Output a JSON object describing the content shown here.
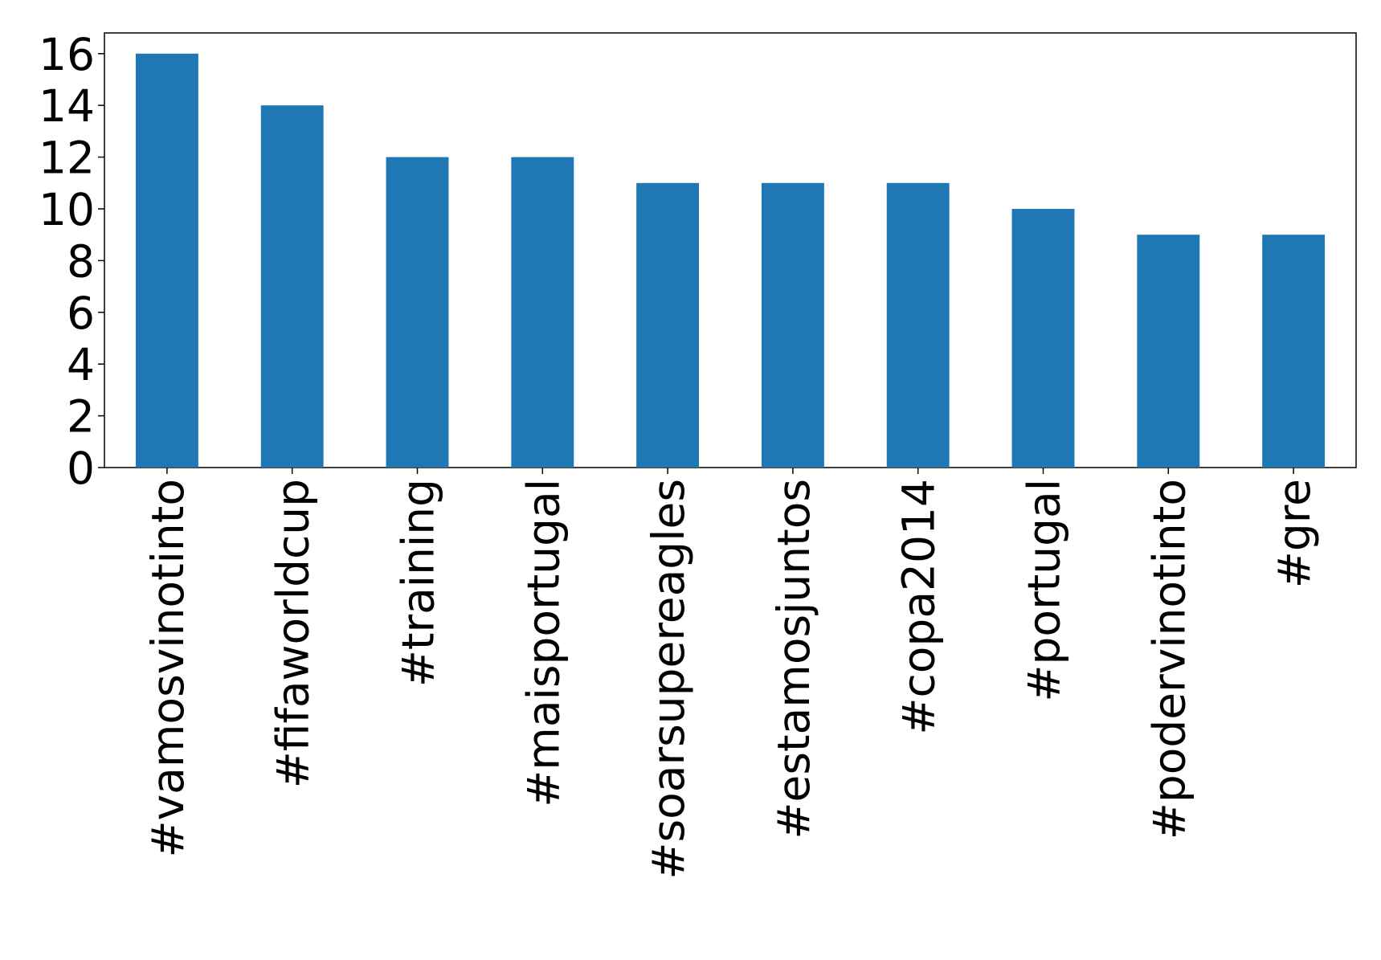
{
  "chart_data": {
    "type": "bar",
    "categories": [
      "#vamosvinotinto",
      "#fifaworldcup",
      "#training",
      "#maisportugal",
      "#soarsupereagles",
      "#estamosjuntos",
      "#copa2014",
      "#portugal",
      "#podervinotinto",
      "#gre"
    ],
    "values": [
      16,
      14,
      12,
      12,
      11,
      11,
      11,
      10,
      9,
      9
    ],
    "color": "#1f77b4",
    "ylim": [
      0,
      16.8
    ],
    "yticks": [
      0,
      2,
      4,
      6,
      8,
      10,
      12,
      14,
      16
    ],
    "grid": false
  }
}
